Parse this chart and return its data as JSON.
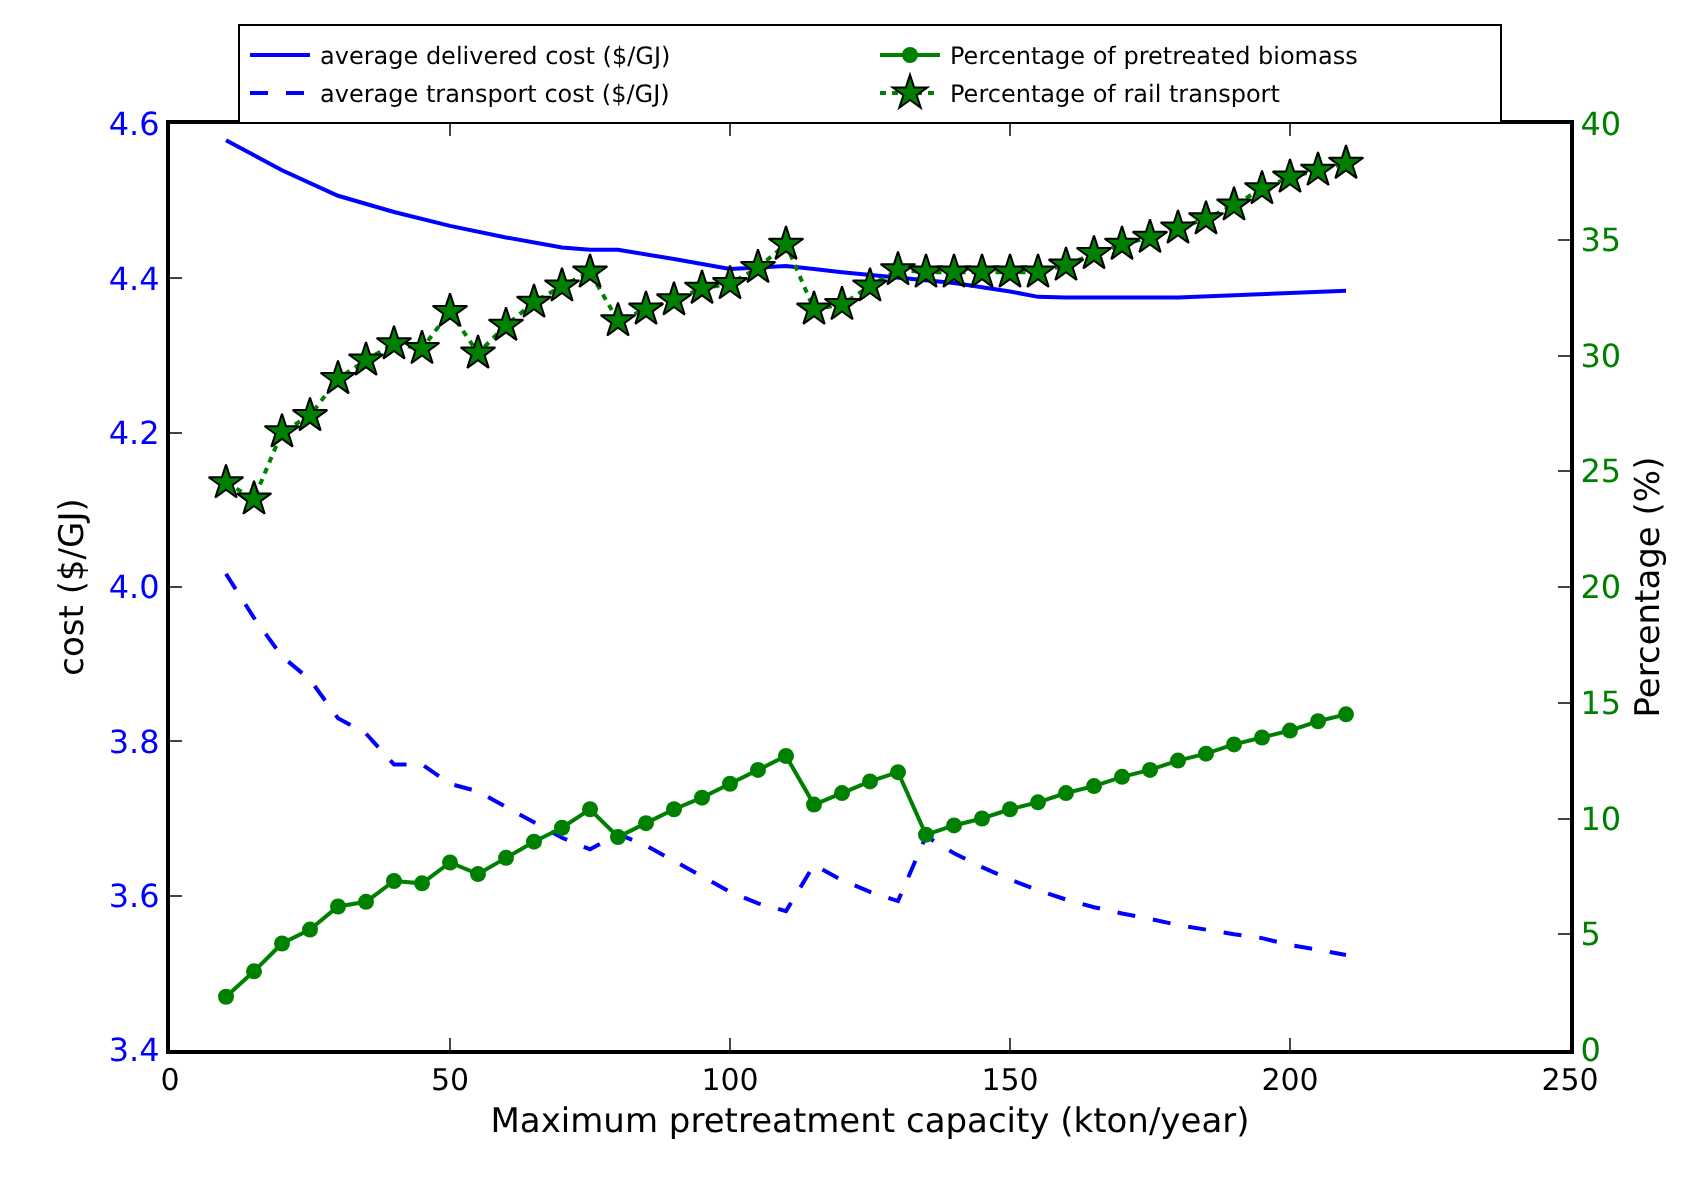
{
  "chart_data": {
    "type": "line",
    "xlabel": "Maximum pretreatment capacity (kton/year)",
    "ylabel": "cost ($/GJ)",
    "y2label": "Percentage (%)",
    "xlim": [
      0,
      250
    ],
    "xticks": [
      0,
      50,
      100,
      150,
      200,
      250
    ],
    "ylim": [
      3.4,
      4.6
    ],
    "yticks": [
      3.4,
      3.6,
      3.8,
      {
        "value": 4.0,
        "label": "4.0"
      },
      4.2,
      4.4,
      4.6
    ],
    "y2lim": [
      0,
      40
    ],
    "y2ticks": [
      0,
      5,
      10,
      15,
      20,
      25,
      30,
      35,
      40
    ],
    "legend": "top",
    "series": [
      {
        "name": "average delivered cost ($/GJ)",
        "color": "#0000ff",
        "line_style": "solid",
        "marker": "none",
        "x": [
          10,
          20,
          30,
          40,
          50,
          60,
          70,
          75,
          80,
          90,
          100,
          110,
          115,
          120,
          140,
          150,
          155,
          160,
          180,
          200,
          210
        ],
        "values": [
          4.579,
          4.54,
          4.507,
          4.486,
          4.468,
          4.453,
          4.44,
          4.437,
          4.437,
          4.425,
          4.412,
          4.416,
          4.412,
          4.408,
          4.394,
          4.383,
          4.376,
          4.375,
          4.375,
          4.381,
          4.384
        ]
      },
      {
        "name": "average transport cost ($/GJ)",
        "color": "#0000ff",
        "line_style": "dashed",
        "marker": "none",
        "x": [
          10,
          15,
          20,
          25,
          30,
          35,
          40,
          45,
          50,
          55,
          60,
          65,
          70,
          75,
          80,
          85,
          90,
          95,
          100,
          105,
          110,
          115,
          120,
          125,
          130,
          135,
          140,
          145,
          150,
          155,
          160,
          165,
          170,
          175,
          180,
          185,
          190,
          195,
          200,
          205,
          210
        ],
        "values": [
          4.017,
          3.96,
          3.91,
          3.88,
          3.83,
          3.81,
          3.77,
          3.77,
          3.745,
          3.735,
          3.715,
          3.695,
          3.675,
          3.66,
          3.68,
          3.665,
          3.645,
          3.625,
          3.605,
          3.59,
          3.58,
          3.64,
          3.62,
          3.605,
          3.593,
          3.677,
          3.655,
          3.637,
          3.621,
          3.607,
          3.595,
          3.585,
          3.577,
          3.57,
          3.562,
          3.556,
          3.55,
          3.545,
          3.536,
          3.53,
          3.523
        ]
      },
      {
        "name": "Percentage of pretreated biomass",
        "color": "#008000",
        "line_style": "solid",
        "marker": "circle",
        "axis": "y2",
        "x": [
          10,
          15,
          20,
          25,
          30,
          35,
          40,
          45,
          50,
          55,
          60,
          65,
          70,
          75,
          80,
          85,
          90,
          95,
          100,
          105,
          110,
          115,
          120,
          125,
          130,
          135,
          140,
          145,
          150,
          155,
          160,
          165,
          170,
          175,
          180,
          185,
          190,
          195,
          200,
          205,
          210
        ],
        "values": [
          2.3,
          3.4,
          4.6,
          5.2,
          6.2,
          6.4,
          7.3,
          7.2,
          8.1,
          7.6,
          8.3,
          9.0,
          9.6,
          10.4,
          9.2,
          9.8,
          10.4,
          10.9,
          11.5,
          12.1,
          12.7,
          10.6,
          11.1,
          11.6,
          12.0,
          9.3,
          9.7,
          10.0,
          10.4,
          10.7,
          11.1,
          11.4,
          11.8,
          12.1,
          12.5,
          12.8,
          13.2,
          13.5,
          13.8,
          14.2,
          14.5
        ]
      },
      {
        "name": "Percentage of rail transport",
        "color": "#008000",
        "line_style": "dotted",
        "marker": "star",
        "axis": "y2",
        "x": [
          10,
          15,
          20,
          25,
          30,
          35,
          40,
          45,
          50,
          55,
          60,
          65,
          70,
          75,
          80,
          85,
          90,
          95,
          100,
          105,
          110,
          115,
          120,
          125,
          130,
          135,
          140,
          145,
          150,
          155,
          160,
          165,
          170,
          175,
          180,
          185,
          190,
          195,
          200,
          205,
          210
        ],
        "values": [
          24.5,
          23.8,
          26.7,
          27.4,
          29.0,
          29.8,
          30.5,
          30.3,
          31.9,
          30.1,
          31.3,
          32.3,
          33.0,
          33.6,
          31.5,
          32.0,
          32.4,
          32.9,
          33.1,
          33.8,
          34.8,
          32.0,
          32.2,
          33.0,
          33.7,
          33.6,
          33.6,
          33.6,
          33.6,
          33.6,
          33.9,
          34.4,
          34.8,
          35.1,
          35.5,
          35.9,
          36.5,
          37.2,
          37.7,
          38.0,
          38.3
        ]
      }
    ]
  }
}
